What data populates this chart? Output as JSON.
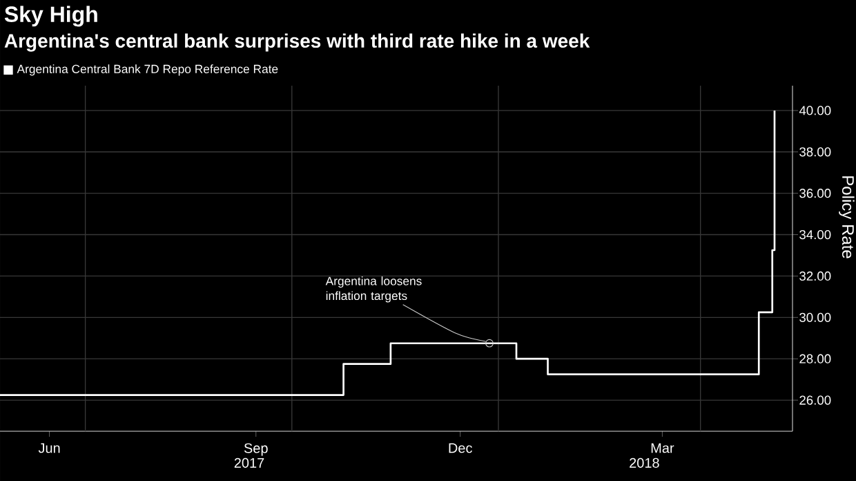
{
  "chart_data": {
    "type": "step",
    "title": "Sky High",
    "subtitle": "Argentina's central bank surprises with third rate hike in a week",
    "ylabel": "Policy Rate",
    "x": [
      "2017-05-24",
      "2017-10-24",
      "2017-11-14",
      "2018-01-09",
      "2018-01-23",
      "2018-04-27",
      "2018-05-03",
      "2018-05-04"
    ],
    "series": [
      {
        "name": "Argentina Central Bank 7D Repo Reference Rate",
        "color": "#ffffff",
        "values": [
          26.25,
          27.75,
          28.75,
          28.0,
          27.25,
          30.25,
          33.25,
          40.0
        ]
      }
    ],
    "xlim": [
      "2017-05-24",
      "2018-05-12"
    ],
    "xticks": [
      {
        "value": "2017-06-15",
        "label": "Jun"
      },
      {
        "value": "2017-07-01",
        "label": null
      },
      {
        "value": "2017-09-15",
        "label": "Sep"
      },
      {
        "value": "2017-10-01",
        "label": null
      },
      {
        "value": "2017-12-15",
        "label": "Dec"
      },
      {
        "value": "2018-01-01",
        "label": null
      },
      {
        "value": "2018-03-15",
        "label": "Mar"
      },
      {
        "value": "2018-04-01",
        "label": null
      }
    ],
    "x2lim": [
      "2017-05-24",
      "2018-05-12"
    ],
    "x2ticks": [
      {
        "value": "2017-09-12",
        "label": "2017"
      },
      {
        "value": "2018-03-07",
        "label": "2018"
      }
    ],
    "ylim": [
      24.5,
      41.2
    ],
    "yticks": [
      {
        "value": 26,
        "label": "26.00"
      },
      {
        "value": 28,
        "label": "28.00"
      },
      {
        "value": 30,
        "label": "30.00"
      },
      {
        "value": 32,
        "label": "32.00"
      },
      {
        "value": 34,
        "label": "34.00"
      },
      {
        "value": 36,
        "label": "36.00"
      },
      {
        "value": 38,
        "label": "38.00"
      },
      {
        "value": 40,
        "label": "40.00"
      }
    ],
    "annotations": [
      {
        "text": "Argentina loosens inflation targets",
        "x": "2017-12-28",
        "y": 28.75
      }
    ],
    "grid": true,
    "legend": "top left",
    "marker": "none",
    "line_style": "solid"
  }
}
